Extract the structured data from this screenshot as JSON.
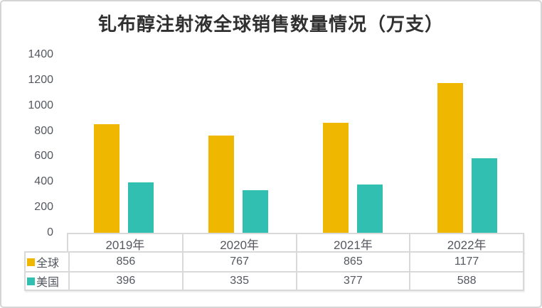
{
  "page_title": "钆布醇注射液全球销售数量情况（万支）",
  "chart_data": {
    "type": "bar",
    "title": "钆布醇注射液全球销售数量情况（万支）",
    "categories": [
      "2019年",
      "2020年",
      "2021年",
      "2022年"
    ],
    "series": [
      {
        "name": "全球",
        "color": "#EFB700",
        "values": [
          856,
          767,
          865,
          1177
        ]
      },
      {
        "name": "美国",
        "color": "#31BFB2",
        "values": [
          396,
          335,
          377,
          588
        ]
      }
    ],
    "ylabel": "",
    "xlabel": "",
    "ylim": [
      0,
      1400
    ],
    "yticks": [
      0,
      200,
      400,
      600,
      800,
      1000,
      1200,
      1400
    ],
    "grid": false,
    "legend_position": "data-table-left",
    "data_table": true
  },
  "colors": {
    "global_series": "#EFB700",
    "us_series": "#31BFB2",
    "table_border": "#D9D9D9",
    "axis_text": "#54575E",
    "title_text": "#303030",
    "frame_border": "#D5D5D5"
  }
}
